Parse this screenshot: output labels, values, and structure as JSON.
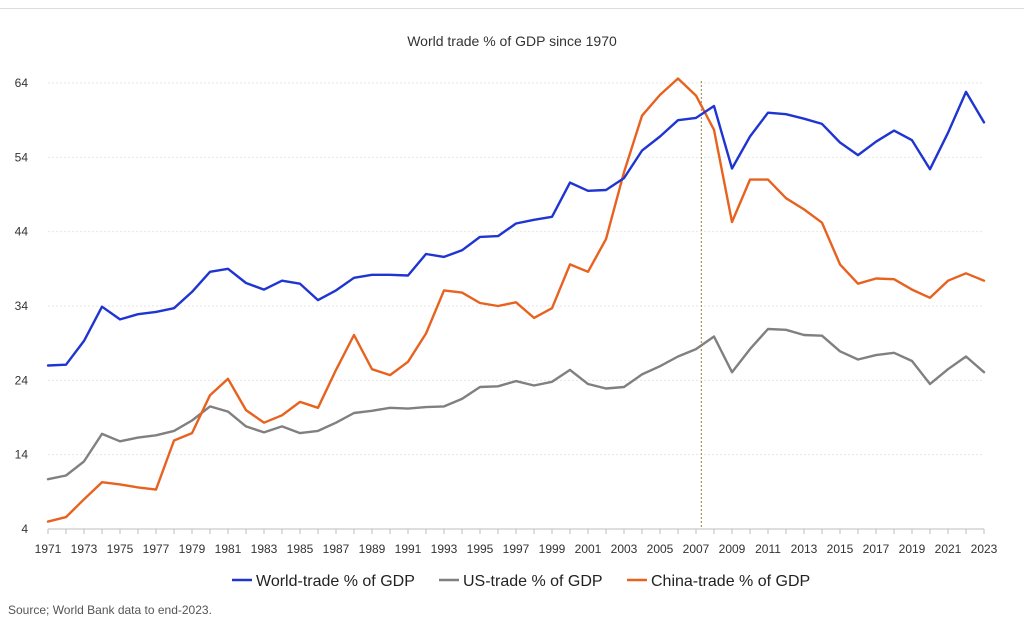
{
  "chart_data": {
    "type": "line",
    "title": "World trade % of GDP since 1970",
    "xlabel": "",
    "ylabel": "",
    "ylim": [
      4,
      64
    ],
    "yticks": [
      4,
      14,
      24,
      34,
      44,
      54,
      64
    ],
    "x": [
      1971,
      1972,
      1973,
      1974,
      1975,
      1976,
      1977,
      1978,
      1979,
      1980,
      1981,
      1982,
      1983,
      1984,
      1985,
      1986,
      1987,
      1988,
      1989,
      1990,
      1991,
      1992,
      1993,
      1994,
      1995,
      1996,
      1997,
      1998,
      1999,
      2000,
      2001,
      2002,
      2003,
      2004,
      2005,
      2006,
      2007,
      2008,
      2009,
      2010,
      2011,
      2012,
      2013,
      2014,
      2015,
      2016,
      2017,
      2018,
      2019,
      2020,
      2021,
      2022,
      2023
    ],
    "xticks": [
      1971,
      1973,
      1975,
      1977,
      1979,
      1981,
      1983,
      1985,
      1987,
      1989,
      1991,
      1993,
      1995,
      1997,
      1999,
      2001,
      2003,
      2005,
      2007,
      2009,
      2011,
      2013,
      2015,
      2017,
      2019,
      2021,
      2023
    ],
    "vline_at": 2007.3,
    "legend_position": "bottom",
    "grid": true,
    "series": [
      {
        "name": "World-trade % of GDP",
        "color": "#1f35d1",
        "values": [
          26.0,
          26.1,
          29.3,
          33.9,
          32.2,
          32.9,
          33.2,
          33.7,
          35.9,
          38.6,
          39.0,
          37.1,
          36.2,
          37.4,
          37.0,
          34.8,
          36.1,
          37.8,
          38.2,
          38.2,
          38.1,
          41.0,
          40.6,
          41.5,
          43.3,
          43.4,
          45.1,
          45.6,
          46.0,
          50.6,
          49.5,
          49.6,
          51.2,
          54.9,
          56.8,
          59.0,
          59.3,
          60.9,
          52.5,
          56.8,
          60.0,
          59.8,
          59.2,
          58.5,
          56.0,
          54.3,
          56.1,
          57.6,
          56.3,
          52.4,
          57.3,
          62.8,
          58.7
        ]
      },
      {
        "name": "US-trade % of GDP",
        "color": "#808080",
        "values": [
          10.7,
          11.2,
          13.1,
          16.8,
          15.8,
          16.3,
          16.6,
          17.2,
          18.6,
          20.5,
          19.8,
          17.8,
          17.0,
          17.8,
          16.9,
          17.2,
          18.3,
          19.6,
          19.9,
          20.3,
          20.2,
          20.4,
          20.5,
          21.5,
          23.1,
          23.2,
          23.9,
          23.3,
          23.8,
          25.4,
          23.5,
          22.9,
          23.1,
          24.8,
          25.9,
          27.2,
          28.2,
          29.9,
          25.1,
          28.2,
          30.9,
          30.8,
          30.1,
          30.0,
          27.9,
          26.8,
          27.4,
          27.7,
          26.6,
          23.5,
          25.5,
          27.2,
          25.1
        ]
      },
      {
        "name": "China-trade % of GDP",
        "color": "#e8621f",
        "values": [
          5.0,
          5.6,
          8.0,
          10.3,
          10.0,
          9.6,
          9.3,
          15.9,
          16.9,
          22.0,
          24.2,
          20.0,
          18.3,
          19.3,
          21.1,
          20.3,
          25.4,
          30.1,
          25.5,
          24.7,
          26.5,
          30.3,
          36.1,
          35.8,
          34.4,
          34.0,
          34.5,
          32.4,
          33.7,
          39.6,
          38.6,
          43.0,
          52.0,
          59.6,
          62.4,
          64.6,
          62.3,
          57.7,
          45.3,
          51.0,
          51.0,
          48.5,
          47.0,
          45.2,
          39.6,
          37.0,
          37.7,
          37.6,
          36.2,
          35.1,
          37.4,
          38.4,
          37.4
        ]
      }
    ]
  },
  "source_note": "Source; World Bank data to end-2023."
}
